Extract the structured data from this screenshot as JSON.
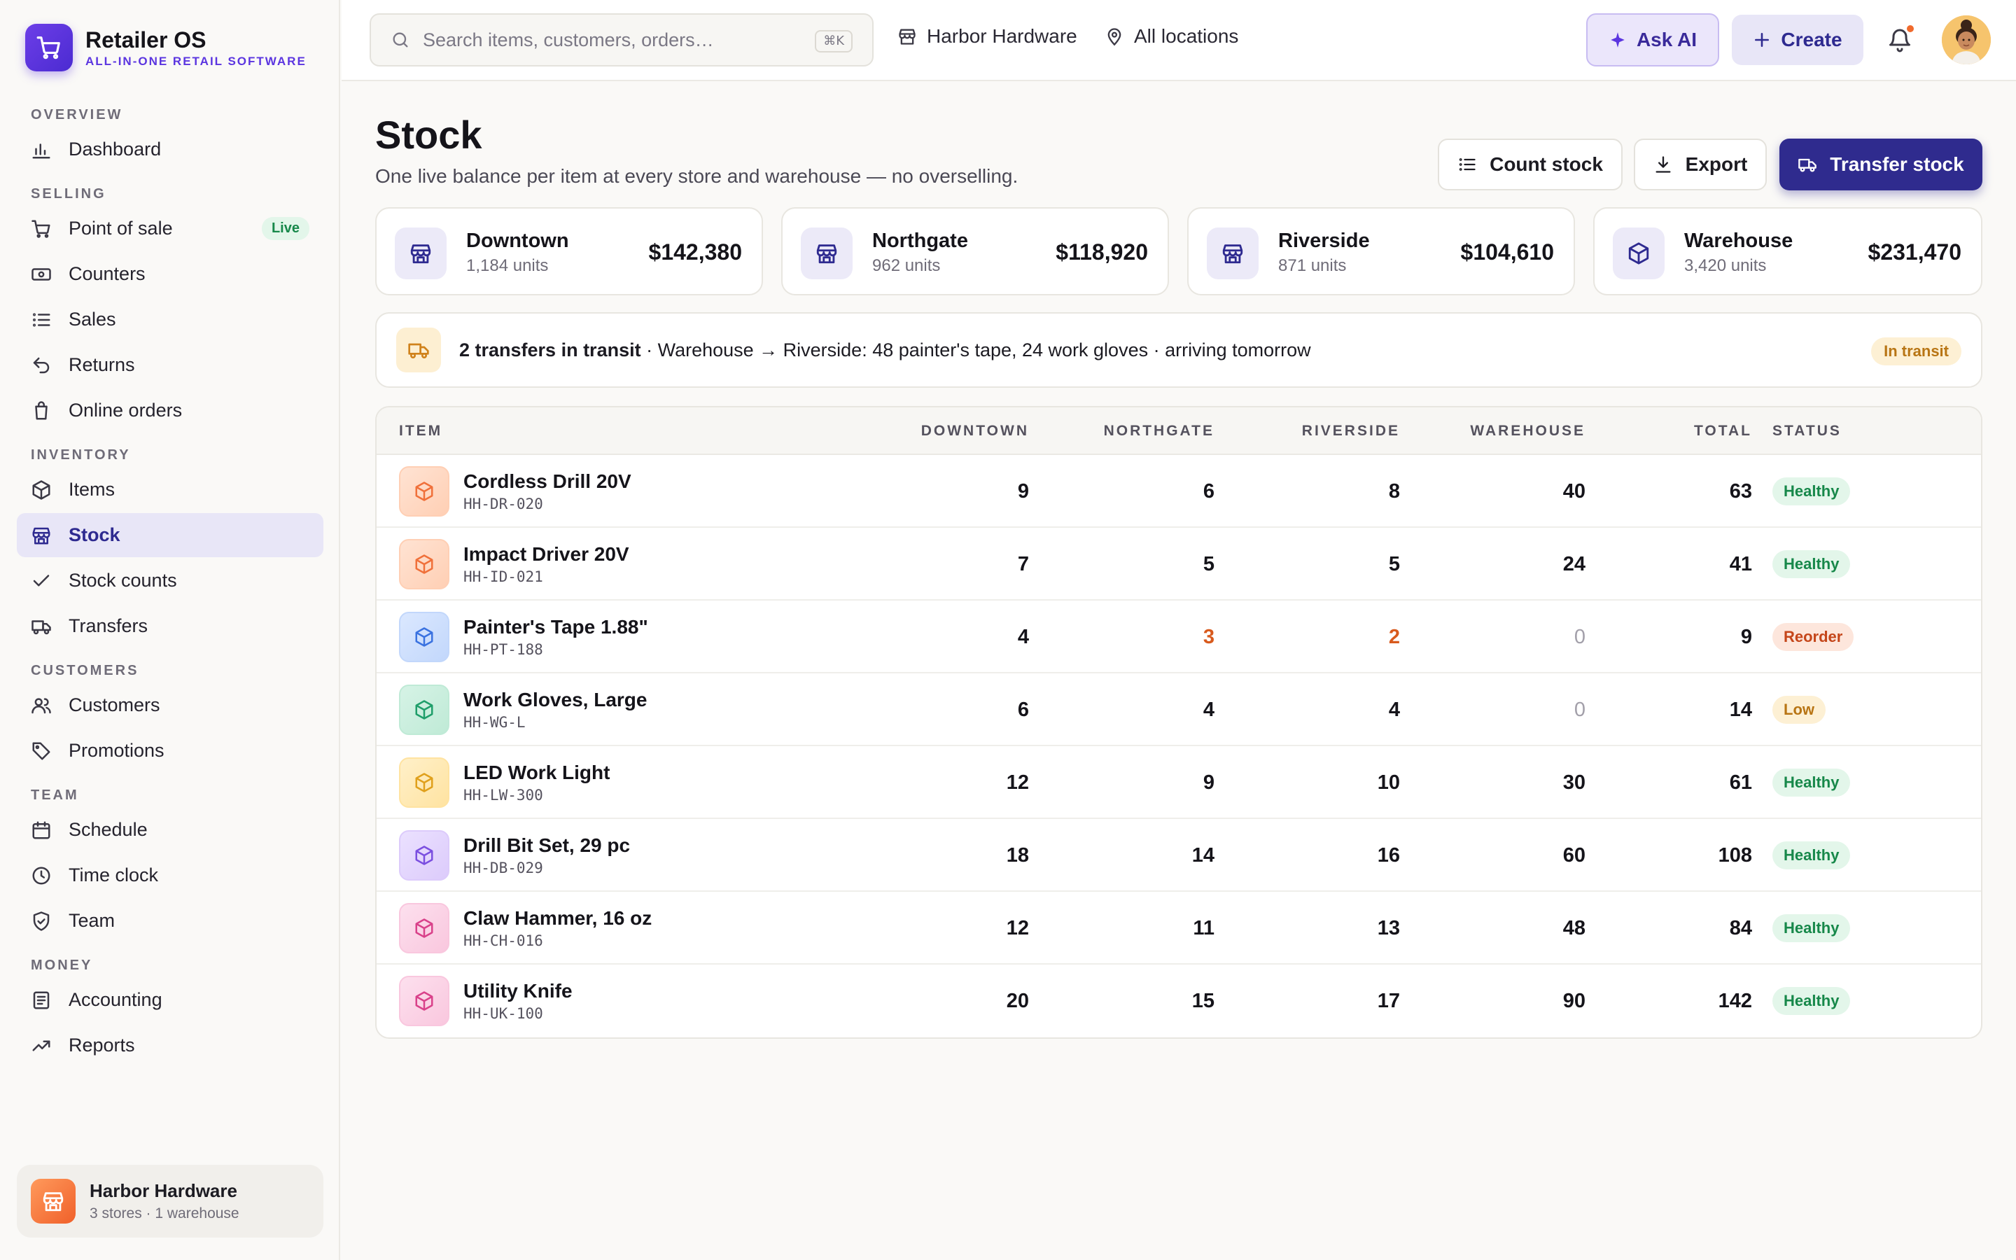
{
  "brand": {
    "name": "Retailer OS",
    "tagline": "ALL-IN-ONE RETAIL SOFTWARE"
  },
  "nav": {
    "overview": "OVERVIEW",
    "dashboard": "Dashboard",
    "selling": "SELLING",
    "point_of_sale": "Point of sale",
    "live_badge": "Live",
    "counters": "Counters",
    "sales": "Sales",
    "returns": "Returns",
    "online_orders": "Online orders",
    "inventory": "INVENTORY",
    "items": "Items",
    "stock": "Stock",
    "stock_counts": "Stock counts",
    "transfers": "Transfers",
    "customers_section": "CUSTOMERS",
    "customers": "Customers",
    "promotions": "Promotions",
    "team_section": "TEAM",
    "schedule": "Schedule",
    "time_clock": "Time clock",
    "team": "Team",
    "money": "MONEY",
    "accounting": "Accounting",
    "reports": "Reports"
  },
  "store_card": {
    "name": "Harbor Hardware",
    "sub": "3 stores · 1 warehouse"
  },
  "topbar": {
    "search_placeholder": "Search items, customers, orders…",
    "shortcut": "⌘K",
    "store": "Harbor Hardware",
    "location": "All locations",
    "ask_ai": "Ask AI",
    "create": "Create"
  },
  "page": {
    "title": "Stock",
    "subtitle": "One live balance per item at every store and warehouse — no overselling.",
    "count_stock": "Count stock",
    "export": "Export",
    "transfer_stock": "Transfer stock"
  },
  "locations": [
    {
      "name": "Downtown",
      "units": "1,184 units",
      "value": "$142,380",
      "icon": "store-icon"
    },
    {
      "name": "Northgate",
      "units": "962 units",
      "value": "$118,920",
      "icon": "store-icon"
    },
    {
      "name": "Riverside",
      "units": "871 units",
      "value": "$104,610",
      "icon": "store-icon"
    },
    {
      "name": "Warehouse",
      "units": "3,420 units",
      "value": "$231,470",
      "icon": "box-icon"
    }
  ],
  "transit": {
    "headline": "2 transfers in transit",
    "detail": " · Warehouse → Riverside: 48 painter's tape, 24 work gloves · arriving tomorrow",
    "badge": "In transit"
  },
  "table": {
    "headers": {
      "item": "ITEM",
      "downtown": "DOWNTOWN",
      "northgate": "NORTHGATE",
      "riverside": "RIVERSIDE",
      "warehouse": "WAREHOUSE",
      "total": "TOTAL",
      "status": "STATUS"
    },
    "rows": [
      {
        "name": "Cordless Drill 20V",
        "sku": "HH-DR-020",
        "downtown": "9",
        "northgate": "6",
        "riverside": "8",
        "warehouse": "40",
        "total": "63",
        "status": "Healthy"
      },
      {
        "name": "Impact Driver 20V",
        "sku": "HH-ID-021",
        "downtown": "7",
        "northgate": "5",
        "riverside": "5",
        "warehouse": "24",
        "total": "41",
        "status": "Healthy"
      },
      {
        "name": "Painter's Tape 1.88\"",
        "sku": "HH-PT-188",
        "downtown": "4",
        "northgate": "3",
        "riverside": "2",
        "warehouse": "0",
        "total": "9",
        "status": "Reorder"
      },
      {
        "name": "Work Gloves, Large",
        "sku": "HH-WG-L",
        "downtown": "6",
        "northgate": "4",
        "riverside": "4",
        "warehouse": "0",
        "total": "14",
        "status": "Low"
      },
      {
        "name": "LED Work Light",
        "sku": "HH-LW-300",
        "downtown": "12",
        "northgate": "9",
        "riverside": "10",
        "warehouse": "30",
        "total": "61",
        "status": "Healthy"
      },
      {
        "name": "Drill Bit Set, 29 pc",
        "sku": "HH-DB-029",
        "downtown": "18",
        "northgate": "14",
        "riverside": "16",
        "warehouse": "60",
        "total": "108",
        "status": "Healthy"
      },
      {
        "name": "Claw Hammer, 16 oz",
        "sku": "HH-CH-016",
        "downtown": "12",
        "northgate": "11",
        "riverside": "13",
        "warehouse": "48",
        "total": "84",
        "status": "Healthy"
      },
      {
        "name": "Utility Knife",
        "sku": "HH-UK-100",
        "downtown": "20",
        "northgate": "15",
        "riverside": "17",
        "warehouse": "90",
        "total": "142",
        "status": "Healthy"
      }
    ]
  },
  "colors": {
    "accent": "#2f2b8e",
    "brand_purple": "#5b35e0",
    "healthy": "#17884a",
    "reorder": "#c5461a",
    "low": "#b87514",
    "warn_value": "#d85a1d"
  }
}
